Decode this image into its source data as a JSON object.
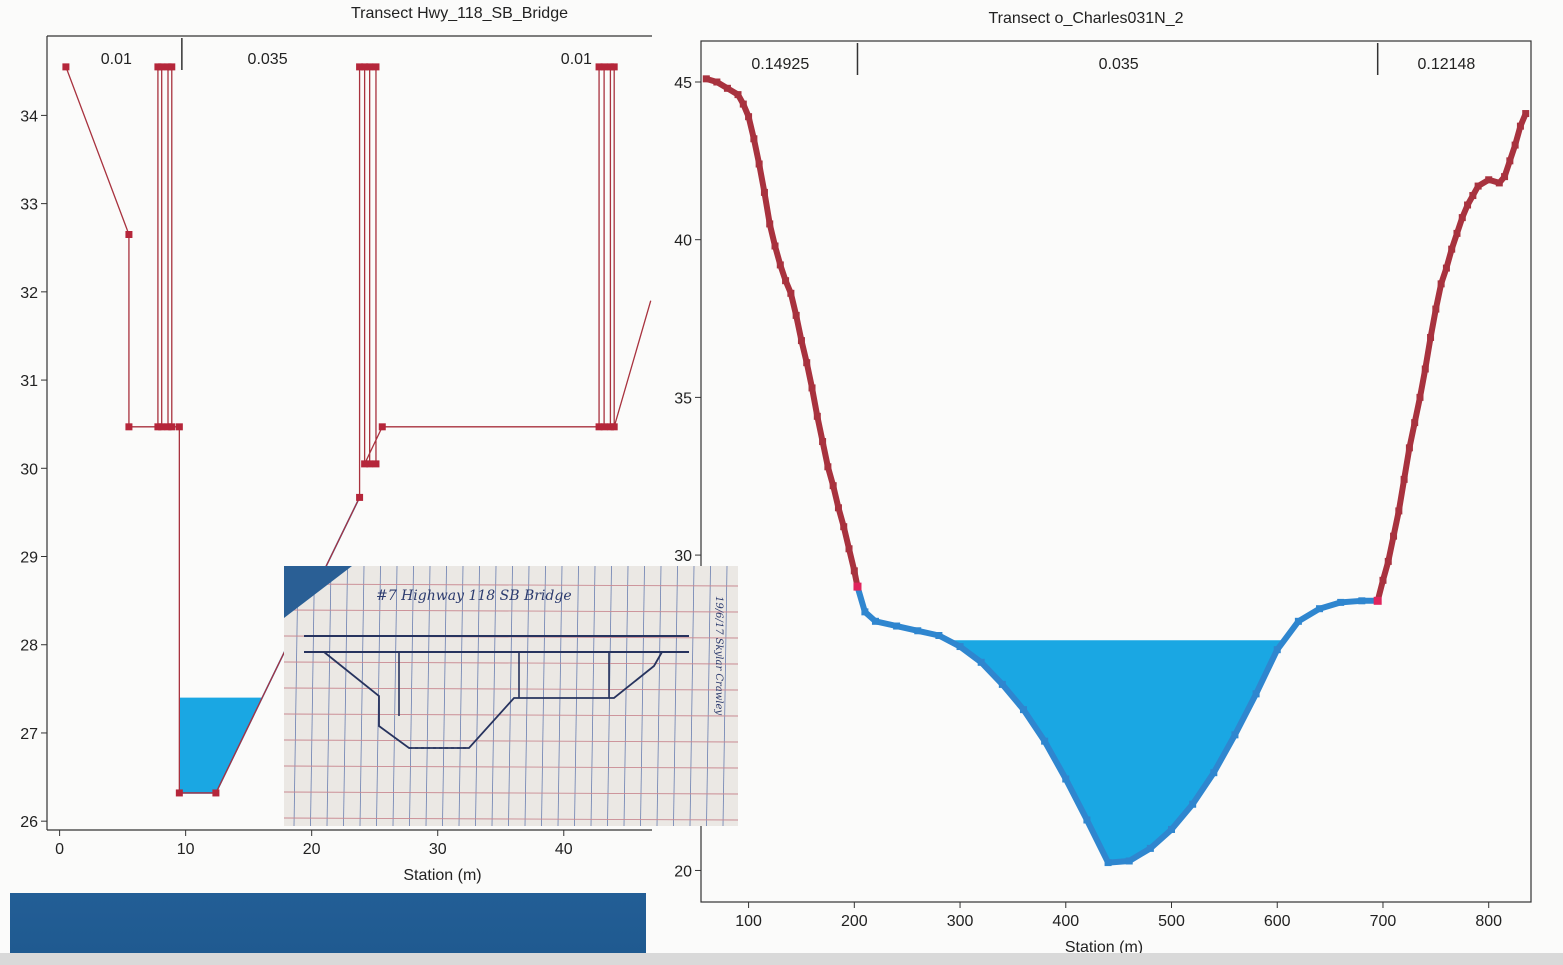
{
  "chart_data": [
    {
      "type": "line",
      "title": "Transect Hwy_118_SB_Bridge",
      "xlabel": "Station (m)",
      "ylabel": "",
      "xlim": [
        -1,
        47
      ],
      "ylim": [
        25.9,
        34.9
      ],
      "xticks": [
        0,
        10,
        20,
        30,
        40
      ],
      "yticks": [
        26,
        27,
        28,
        29,
        30,
        31,
        32,
        33,
        34
      ],
      "grid": false,
      "manning_n": [
        {
          "value": "0.01",
          "x": 4.5
        },
        {
          "value": "0.035",
          "x": 16.5
        },
        {
          "value": "0.01",
          "x": 41
        }
      ],
      "n_dividers": [
        9.7
      ],
      "water_surface": 27.4,
      "profile": [
        [
          0.5,
          34.55
        ],
        [
          5.5,
          32.65
        ],
        [
          5.5,
          30.47
        ],
        [
          7.8,
          30.47
        ],
        [
          7.8,
          34.55
        ],
        [
          8.6,
          34.55
        ],
        [
          8.6,
          30.47
        ],
        [
          8.1,
          30.47
        ],
        [
          8.1,
          34.55
        ],
        [
          8.9,
          34.55
        ],
        [
          8.9,
          30.47
        ],
        [
          9.5,
          30.47
        ],
        [
          9.5,
          26.32
        ],
        [
          12.4,
          26.32
        ],
        [
          23.8,
          29.67
        ],
        [
          23.8,
          34.55
        ],
        [
          24.6,
          34.55
        ],
        [
          24.6,
          30.05
        ],
        [
          25.1,
          30.05
        ],
        [
          25.1,
          34.55
        ],
        [
          24.2,
          34.55
        ],
        [
          24.2,
          30.05
        ],
        [
          25.6,
          30.47
        ],
        [
          42.8,
          30.47
        ],
        [
          42.8,
          34.55
        ],
        [
          43.7,
          34.55
        ],
        [
          43.7,
          30.47
        ],
        [
          43.2,
          30.47
        ],
        [
          43.2,
          34.55
        ],
        [
          44.0,
          34.55
        ],
        [
          44.0,
          30.47
        ],
        [
          46.9,
          31.9
        ]
      ],
      "wetted": [
        [
          9.5,
          26.32
        ],
        [
          12.4,
          26.32
        ],
        [
          23.8,
          29.67
        ]
      ]
    },
    {
      "type": "line",
      "title": "Transect o_Charles031N_2",
      "xlabel": "Station (m)",
      "ylabel": "",
      "xlim": [
        55,
        840
      ],
      "ylim": [
        19,
        46.3
      ],
      "xticks": [
        100,
        200,
        300,
        400,
        500,
        600,
        700,
        800
      ],
      "yticks": [
        20,
        25,
        30,
        35,
        40,
        45
      ],
      "grid": false,
      "manning_n": [
        {
          "value": "0.14925",
          "x": 130
        },
        {
          "value": "0.035",
          "x": 450
        },
        {
          "value": "0.12148",
          "x": 760
        }
      ],
      "n_dividers": [
        203,
        695
      ],
      "water_surface": 27.3,
      "left_bank": [
        [
          60,
          45.1
        ],
        [
          70,
          45.0
        ],
        [
          80,
          44.8
        ],
        [
          90,
          44.6
        ],
        [
          95,
          44.3
        ],
        [
          100,
          43.9
        ],
        [
          105,
          43.2
        ],
        [
          110,
          42.4
        ],
        [
          115,
          41.5
        ],
        [
          120,
          40.5
        ],
        [
          125,
          39.8
        ],
        [
          130,
          39.2
        ],
        [
          135,
          38.7
        ],
        [
          140,
          38.3
        ],
        [
          145,
          37.6
        ],
        [
          150,
          36.8
        ],
        [
          155,
          36.1
        ],
        [
          160,
          35.3
        ],
        [
          165,
          34.4
        ],
        [
          170,
          33.6
        ],
        [
          175,
          32.8
        ],
        [
          180,
          32.2
        ],
        [
          185,
          31.5
        ],
        [
          190,
          30.9
        ],
        [
          195,
          30.2
        ],
        [
          200,
          29.5
        ],
        [
          203,
          29.0
        ]
      ],
      "channel": [
        [
          203,
          29.0
        ],
        [
          210,
          28.2
        ],
        [
          220,
          27.9
        ],
        [
          240,
          27.75
        ],
        [
          260,
          27.6
        ],
        [
          280,
          27.45
        ],
        [
          300,
          27.1
        ],
        [
          320,
          26.6
        ],
        [
          340,
          25.9
        ],
        [
          360,
          25.1
        ],
        [
          380,
          24.1
        ],
        [
          400,
          22.9
        ],
        [
          420,
          21.6
        ],
        [
          440,
          20.25
        ],
        [
          460,
          20.3
        ],
        [
          480,
          20.7
        ],
        [
          500,
          21.3
        ],
        [
          520,
          22.1
        ],
        [
          540,
          23.1
        ],
        [
          560,
          24.3
        ],
        [
          580,
          25.6
        ],
        [
          600,
          27.0
        ],
        [
          620,
          27.9
        ],
        [
          640,
          28.3
        ],
        [
          660,
          28.5
        ],
        [
          680,
          28.55
        ],
        [
          695,
          28.55
        ]
      ],
      "right_bank": [
        [
          695,
          28.55
        ],
        [
          700,
          29.2
        ],
        [
          705,
          29.8
        ],
        [
          710,
          30.6
        ],
        [
          715,
          31.4
        ],
        [
          720,
          32.4
        ],
        [
          725,
          33.4
        ],
        [
          730,
          34.2
        ],
        [
          735,
          35.0
        ],
        [
          740,
          35.9
        ],
        [
          745,
          36.9
        ],
        [
          750,
          37.8
        ],
        [
          755,
          38.6
        ],
        [
          760,
          39.1
        ],
        [
          765,
          39.7
        ],
        [
          770,
          40.2
        ],
        [
          775,
          40.7
        ],
        [
          780,
          41.1
        ],
        [
          785,
          41.4
        ],
        [
          790,
          41.7
        ],
        [
          800,
          41.9
        ],
        [
          810,
          41.8
        ],
        [
          815,
          42.0
        ],
        [
          820,
          42.5
        ],
        [
          825,
          43.0
        ],
        [
          830,
          43.6
        ],
        [
          835,
          44.0
        ]
      ]
    }
  ],
  "photo_notes": {
    "title": "#7  Highway 118 SB Bridge",
    "side_note": "19/6/17  Skylar  Crawley"
  }
}
